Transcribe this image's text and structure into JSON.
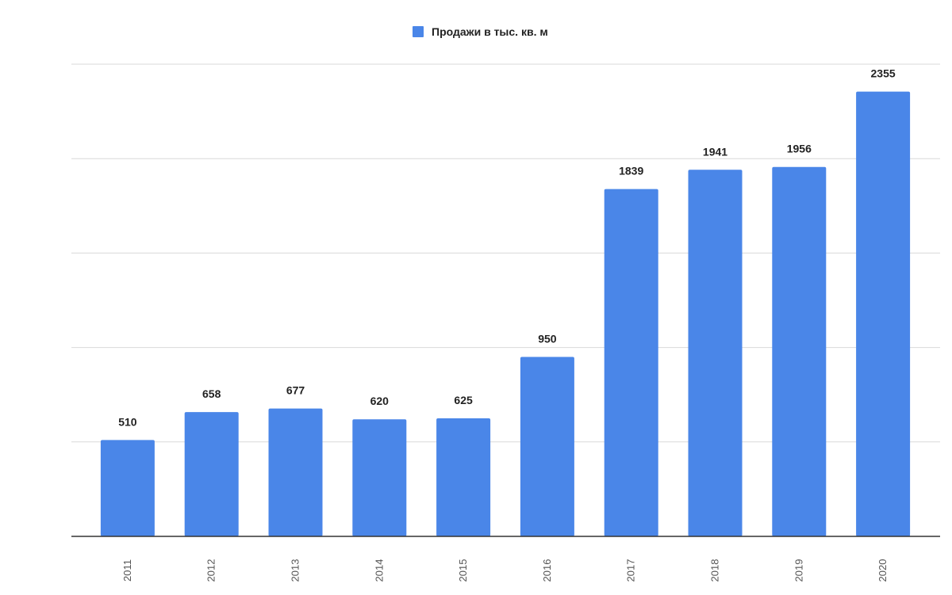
{
  "chart_data": {
    "type": "bar",
    "categories": [
      "2011",
      "2012",
      "2013",
      "2014",
      "2015",
      "2016",
      "2017",
      "2018",
      "2019",
      "2020"
    ],
    "series": [
      {
        "name": "Продажи в тыс. кв. м",
        "values": [
          510,
          658,
          677,
          620,
          625,
          950,
          1839,
          1941,
          1956,
          2355
        ],
        "color": "#4a86e8"
      }
    ],
    "data_labels": [
      "510",
      "658",
      "677",
      "620",
      "625",
      "950",
      "1839",
      "1941",
      "1956",
      "2355"
    ],
    "title": "",
    "xlabel": "",
    "ylabel": "",
    "ylim": [
      0,
      2500
    ],
    "y_grid_step": 500,
    "grid": true,
    "legend_position": "top-center",
    "x_tick_rotation": "vertical"
  },
  "colors": {
    "bar": "#4a86e8",
    "grid": "#d9d9d9",
    "axis": "#333333"
  }
}
